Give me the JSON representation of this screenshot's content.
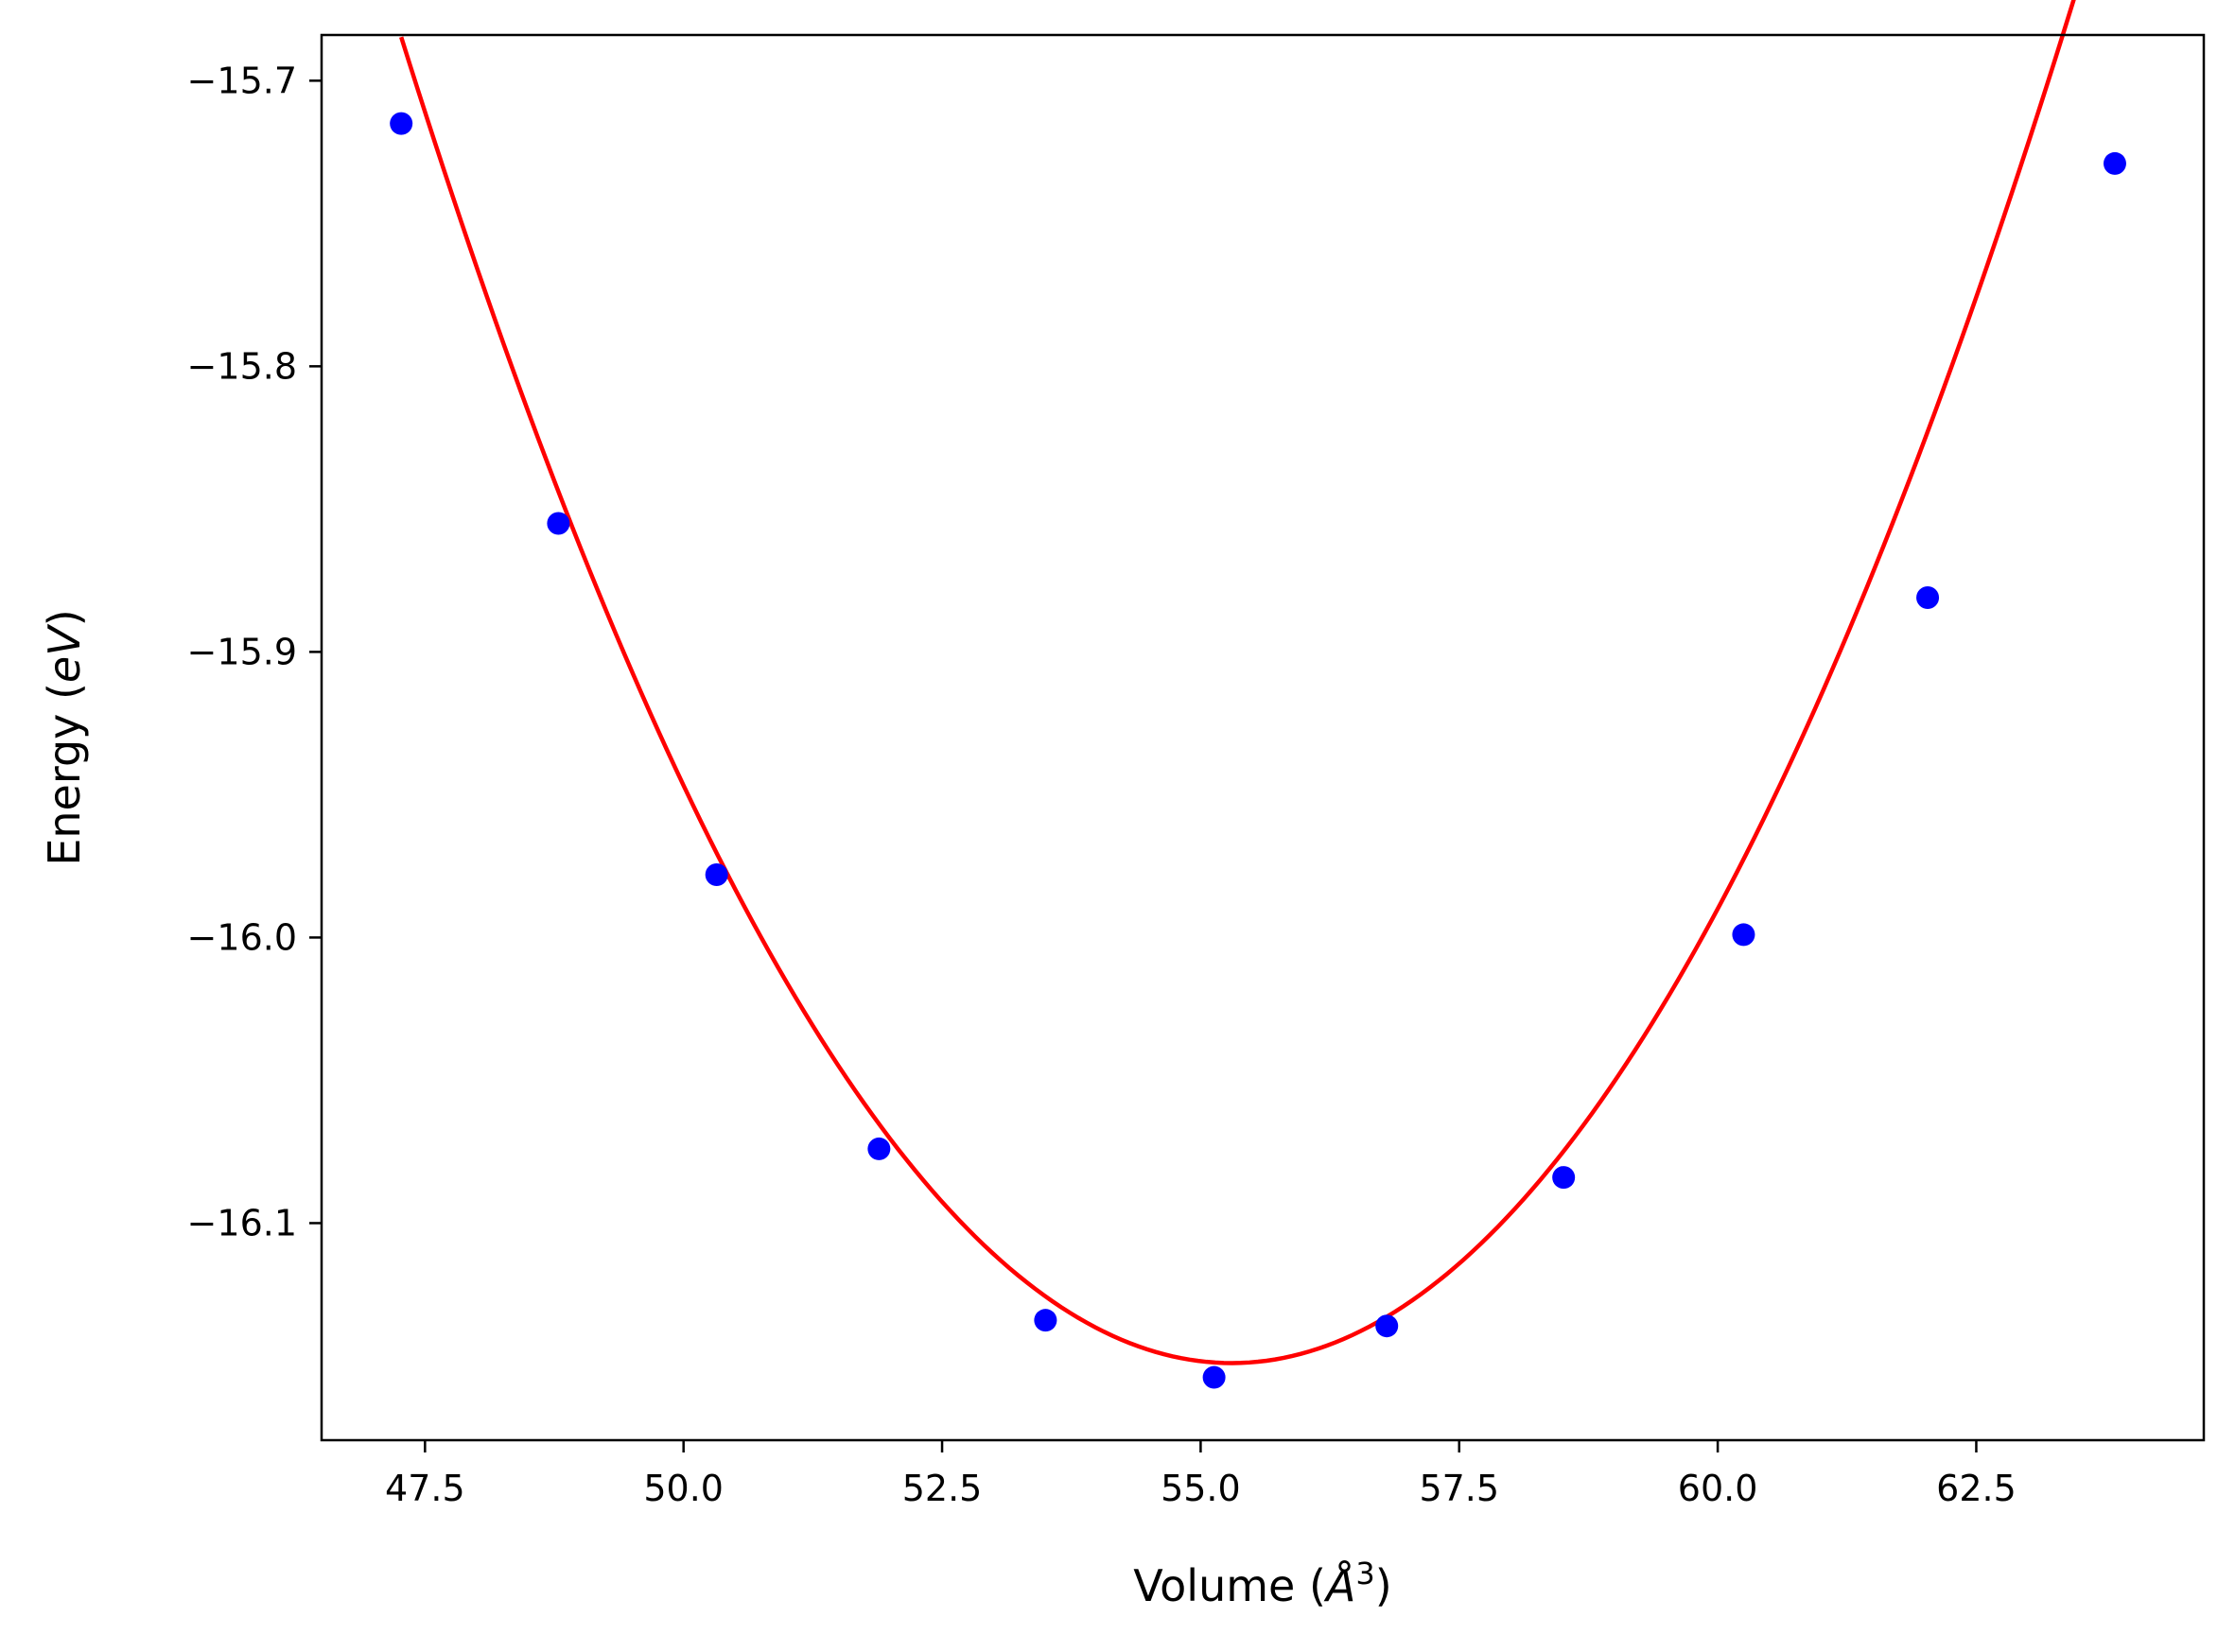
{
  "chart_data": {
    "type": "scatter",
    "xlabel": "Volume",
    "xlabel_unit": "Å",
    "xlabel_unit_exp": "3",
    "ylabel": "Energy",
    "ylabel_unit": "eV",
    "xlim": [
      46.5,
      64.7
    ],
    "ylim": [
      -16.176,
      -15.684
    ],
    "xticks": [
      47.5,
      50.0,
      52.5,
      55.0,
      57.5,
      60.0,
      62.5
    ],
    "xtick_labels": [
      "47.5",
      "50.0",
      "52.5",
      "55.0",
      "57.5",
      "60.0",
      "62.5"
    ],
    "yticks": [
      -15.7,
      -15.8,
      -15.9,
      -16.0,
      -16.1
    ],
    "ytick_labels": [
      "−15.7",
      "−15.8",
      "−15.9",
      "−16.0",
      "−16.1"
    ],
    "grid": false,
    "series": [
      {
        "kind": "points",
        "color": "#0000ff",
        "x": [
          47.27,
          48.79,
          50.32,
          51.89,
          53.5,
          55.13,
          56.8,
          58.51,
          60.25,
          62.03,
          63.84
        ],
        "y": [
          -15.715,
          -15.855,
          -15.978,
          -16.074,
          -16.134,
          -16.154,
          -16.136,
          -16.084,
          -15.999,
          -15.881,
          -15.729
        ]
      },
      {
        "kind": "fit-curve",
        "color": "#ff0000",
        "fit": {
          "type": "quadratic",
          "x_min": 55.3,
          "y_min": -16.149,
          "curvature": 0.0072
        },
        "x_range": [
          47.27,
          63.84
        ]
      }
    ]
  }
}
